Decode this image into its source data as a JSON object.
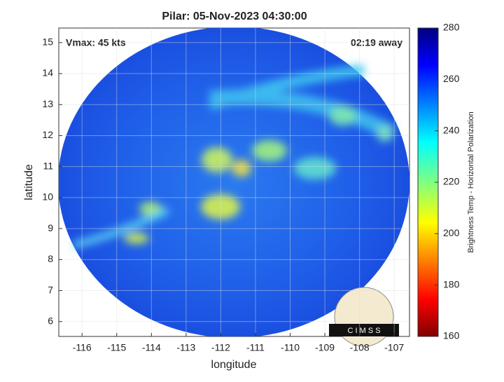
{
  "chart_data": {
    "type": "image",
    "title": "Pilar: 05-Nov-2023 04:30:00",
    "xlabel": "longitude",
    "ylabel": "latitude",
    "annotations": [
      "Vmax: 45 kts",
      "02:19 away"
    ],
    "logo_text": "C I M S S",
    "xlim": [
      -116.67,
      -106.56
    ],
    "xticks": [
      -116,
      -115,
      -114,
      -113,
      -112,
      -111,
      -110,
      -109,
      -108,
      -107
    ],
    "ylim": [
      5.52,
      15.47
    ],
    "yticks": [
      6,
      7,
      8,
      9,
      10,
      11,
      12,
      13,
      14,
      15
    ],
    "grid": true,
    "colorbar": {
      "label": "Brightness Temp - Horizontal Polarization",
      "lim": [
        160,
        280
      ],
      "ticks": [
        160,
        180,
        200,
        220,
        240,
        260,
        280
      ]
    }
  }
}
